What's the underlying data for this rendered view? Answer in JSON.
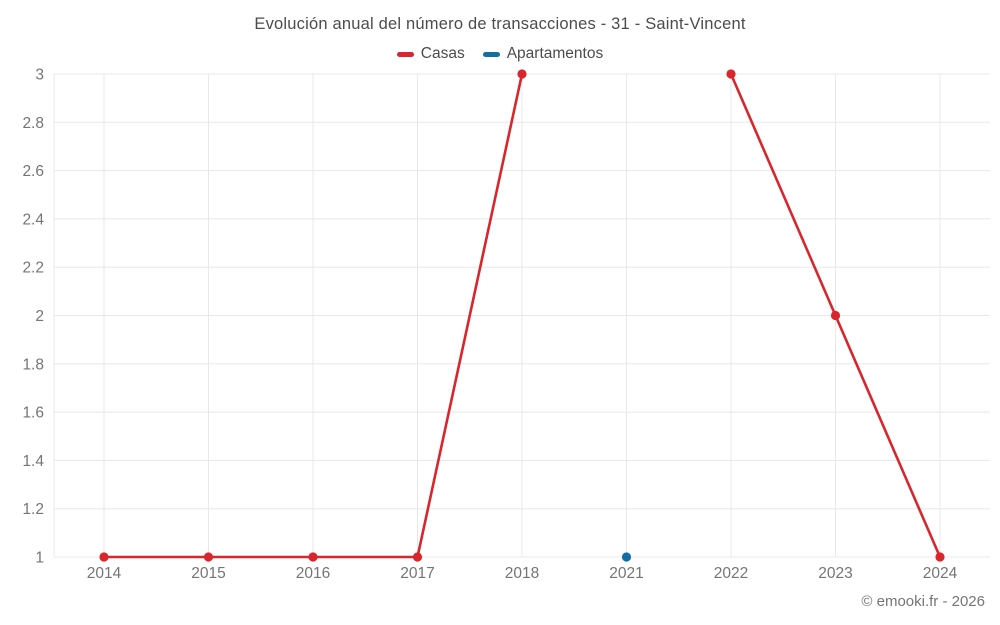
{
  "title": "Evolución anual del número de transacciones - 31 - Saint-Vincent",
  "footer": "© emooki.fr - 2026",
  "legend": [
    {
      "label": "Casas",
      "color": "#d8262c"
    },
    {
      "label": "Apartamentos",
      "color": "#136f9f"
    }
  ],
  "chart_data": {
    "type": "line",
    "title": "Evolución anual del número de transacciones - 31 - Saint-Vincent",
    "categories": [
      "2014",
      "2015",
      "2016",
      "2017",
      "2018",
      "2021",
      "2022",
      "2023",
      "2024"
    ],
    "series": [
      {
        "name": "Casas",
        "color": "#d8262c",
        "values": [
          1,
          1,
          1,
          1,
          3,
          null,
          3,
          2,
          1
        ]
      },
      {
        "name": "Apartamentos",
        "color": "#136f9f",
        "values": [
          null,
          null,
          null,
          null,
          null,
          1,
          null,
          null,
          null
        ]
      }
    ],
    "ylim": [
      1,
      3
    ],
    "ytick_values": [
      1,
      1.2,
      1.4,
      1.6,
      1.8,
      2,
      2.2,
      2.4,
      2.6,
      2.8,
      3
    ],
    "ytick_labels": [
      "1",
      "1.2",
      "1.4",
      "1.6",
      "1.8",
      "2",
      "2.2",
      "2.4",
      "2.6",
      "2.8",
      "3"
    ],
    "xlabel": "",
    "ylabel": "",
    "grid": true,
    "legend_position": "top",
    "line_gap_note": "no data between 2018 and 2022 for Casas; series line is broken there"
  }
}
